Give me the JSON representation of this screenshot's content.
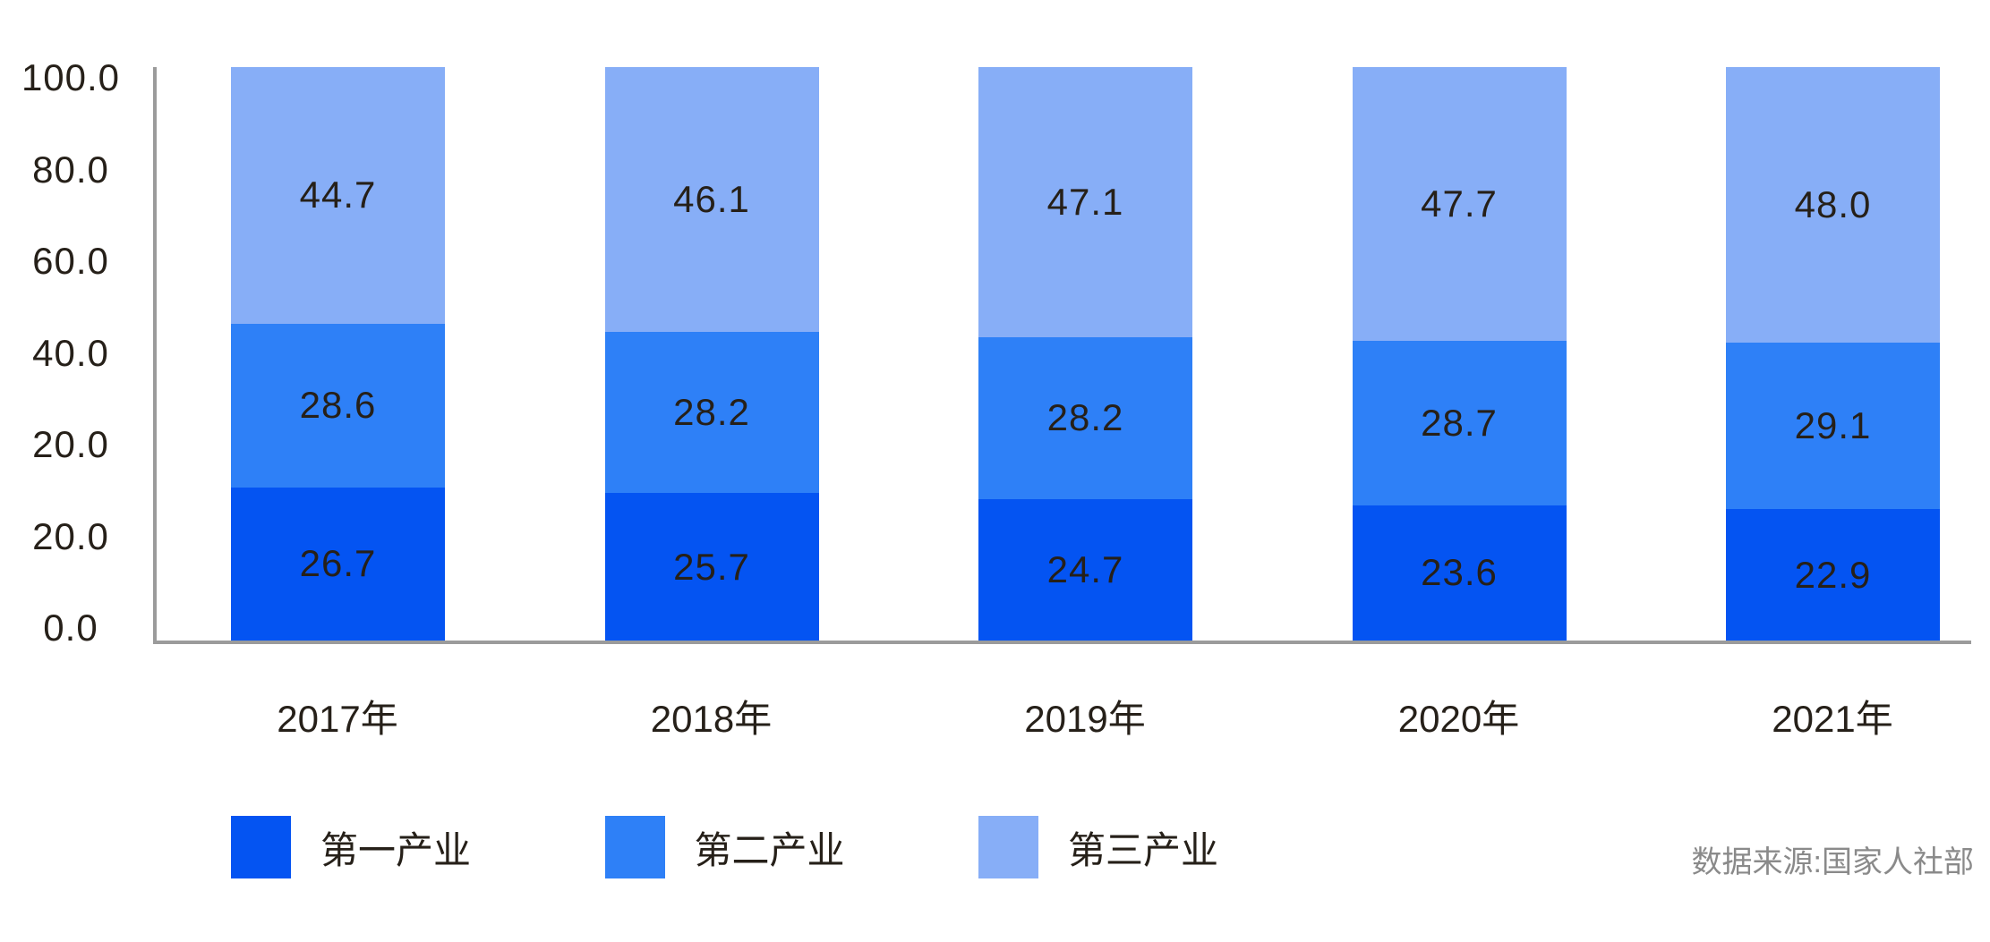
{
  "chart_data": {
    "type": "bar",
    "stacked": true,
    "title": "",
    "categories": [
      "2017年",
      "2018年",
      "2019年",
      "2020年",
      "2021年"
    ],
    "series": [
      {
        "name": "第一产业",
        "color": "#0454F2",
        "values": [
          26.7,
          25.7,
          24.7,
          23.6,
          22.9
        ]
      },
      {
        "name": "第二产业",
        "color": "#2E80F7",
        "values": [
          28.6,
          28.2,
          28.2,
          28.7,
          29.1
        ]
      },
      {
        "name": "第三产业",
        "color": "#87AEF7",
        "values": [
          44.7,
          46.1,
          47.1,
          47.7,
          48.0
        ]
      }
    ],
    "y_axis": {
      "tick_labels": [
        "100.0",
        "80.0",
        "60.0",
        "40.0",
        "20.0",
        "20.0",
        "0.0"
      ],
      "range": [
        0,
        100
      ]
    },
    "value_label_format": "one_decimal",
    "grid": false,
    "legend": {
      "position": "bottom",
      "entries": [
        "第一产业",
        "第二产业",
        "第三产业"
      ]
    },
    "source_note": "数据来源:国家人社部",
    "colors": {
      "axis_line": "#9b9b9b",
      "label_text": "#262019",
      "source_text": "#8a8a8a",
      "background": "#ffffff"
    }
  }
}
